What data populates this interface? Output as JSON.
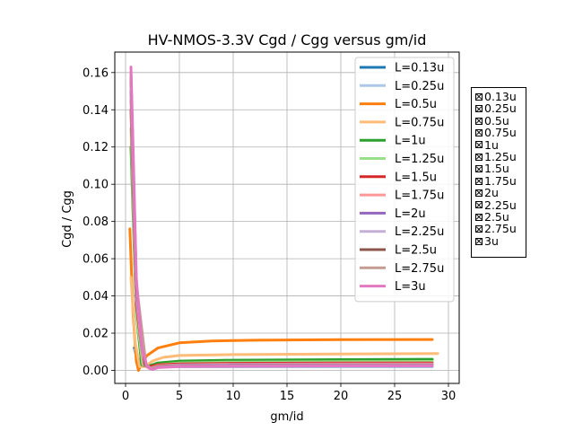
{
  "chart_data": {
    "type": "line",
    "title": "HV-NMOS-3.3V Cgd / Cgg versus gm/id",
    "xlabel": "gm/id",
    "ylabel": "Cgd / Cgg",
    "xlim": [
      -1,
      31
    ],
    "ylim": [
      -0.007,
      0.171
    ],
    "xticks": [
      0,
      5,
      10,
      15,
      20,
      25,
      30
    ],
    "yticks": [
      0.0,
      0.02,
      0.04,
      0.06,
      0.08,
      0.1,
      0.12,
      0.14,
      0.16
    ],
    "grid": true,
    "legend_position": "top-right",
    "series": [
      {
        "name": "L=0.13u",
        "color": "#1f77b4",
        "x": [
          0.8,
          1.2,
          2,
          3,
          5,
          10,
          20,
          28.5
        ],
        "y": [
          0.012,
          0.006,
          0.003,
          0.002,
          0.002,
          0.002,
          0.002,
          0.002
        ]
      },
      {
        "name": "L=0.25u",
        "color": "#aec7e8",
        "x": [
          0.8,
          1.2,
          2,
          3,
          5,
          10,
          20,
          28.5
        ],
        "y": [
          0.011,
          0.005,
          0.003,
          0.002,
          0.002,
          0.002,
          0.002,
          0.002
        ]
      },
      {
        "name": "L=0.5u",
        "color": "#ff7f0e",
        "x": [
          0.4,
          0.7,
          1.0,
          1.2,
          1.5,
          2.0,
          3.0,
          5,
          8,
          12,
          20,
          28.5
        ],
        "y": [
          0.076,
          0.03,
          0.005,
          0.0,
          0.004,
          0.008,
          0.012,
          0.0148,
          0.0158,
          0.0162,
          0.0165,
          0.0166
        ]
      },
      {
        "name": "L=0.75u",
        "color": "#ffbb78",
        "x": [
          0.5,
          0.9,
          1.3,
          1.8,
          2.5,
          3.5,
          5,
          10,
          20,
          29
        ],
        "y": [
          0.05,
          0.015,
          0.002,
          0.002,
          0.005,
          0.007,
          0.008,
          0.0085,
          0.0088,
          0.009
        ]
      },
      {
        "name": "L=1u",
        "color": "#2ca02c",
        "x": [
          0.5,
          1.0,
          1.5,
          2.0,
          3.0,
          5,
          10,
          20,
          28.5
        ],
        "y": [
          0.12,
          0.03,
          0.003,
          0.002,
          0.004,
          0.005,
          0.0055,
          0.0058,
          0.006
        ]
      },
      {
        "name": "L=1.25u",
        "color": "#98df8a",
        "x": [
          0.5,
          1.0,
          1.6,
          2.2,
          3.0,
          5,
          10,
          20,
          28.5
        ],
        "y": [
          0.13,
          0.03,
          0.003,
          0.002,
          0.003,
          0.004,
          0.0045,
          0.0047,
          0.0048
        ]
      },
      {
        "name": "L=1.5u",
        "color": "#d62728",
        "x": [
          0.5,
          1.0,
          1.7,
          2.2,
          3.0,
          5,
          10,
          20,
          28.5
        ],
        "y": [
          0.14,
          0.035,
          0.003,
          0.002,
          0.003,
          0.0035,
          0.0038,
          0.004,
          0.004
        ]
      },
      {
        "name": "L=1.75u",
        "color": "#ff9896",
        "x": [
          0.5,
          1.0,
          1.7,
          2.2,
          3.0,
          5,
          10,
          20,
          28.5
        ],
        "y": [
          0.145,
          0.038,
          0.003,
          0.001,
          0.0025,
          0.003,
          0.0033,
          0.0035,
          0.0035
        ]
      },
      {
        "name": "L=2u",
        "color": "#9467bd",
        "x": [
          0.5,
          1.0,
          1.8,
          2.3,
          3.0,
          5,
          10,
          20,
          28.5
        ],
        "y": [
          0.15,
          0.04,
          0.003,
          0.001,
          0.002,
          0.0028,
          0.003,
          0.003,
          0.003
        ]
      },
      {
        "name": "L=2.25u",
        "color": "#c5b0d5",
        "x": [
          0.5,
          1.0,
          1.8,
          2.3,
          3.0,
          5,
          10,
          20,
          28.5
        ],
        "y": [
          0.155,
          0.042,
          0.003,
          0.001,
          0.002,
          0.0025,
          0.0027,
          0.0028,
          0.0028
        ]
      },
      {
        "name": "L=2.5u",
        "color": "#8c564b",
        "x": [
          0.5,
          1.0,
          1.8,
          2.4,
          3.0,
          5,
          10,
          20,
          28.5
        ],
        "y": [
          0.158,
          0.045,
          0.003,
          0.001,
          0.002,
          0.0023,
          0.0025,
          0.0026,
          0.0026
        ]
      },
      {
        "name": "L=2.75u",
        "color": "#c49c94",
        "x": [
          0.5,
          1.0,
          1.9,
          2.4,
          3.0,
          5,
          10,
          20,
          28.5
        ],
        "y": [
          0.16,
          0.047,
          0.003,
          0.001,
          0.0018,
          0.0022,
          0.0024,
          0.0025,
          0.0025
        ]
      },
      {
        "name": "L=3u",
        "color": "#e377c2",
        "x": [
          0.5,
          0.7,
          1.0,
          1.5,
          2.0,
          2.5,
          3.0,
          5,
          10,
          20,
          28.5
        ],
        "y": [
          0.163,
          0.12,
          0.05,
          0.012,
          0.002,
          0.0005,
          0.0015,
          0.002,
          0.0022,
          0.0024,
          0.0024
        ]
      }
    ]
  },
  "side_legend": {
    "items": [
      "0.13u",
      "0.25u",
      "0.5u",
      "0.75u",
      "1u",
      "1.25u",
      "1.5u",
      "1.75u",
      "2u",
      "2.25u",
      "2.5u",
      "2.75u",
      "3u"
    ]
  }
}
